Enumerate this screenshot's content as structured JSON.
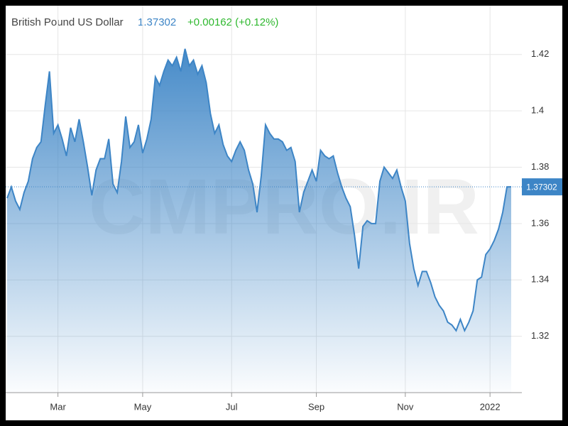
{
  "chart_data": {
    "type": "area",
    "title": "British Pound US Dollar",
    "price": "1.37302",
    "change": "+0.00162 (+0.12%)",
    "watermark": "CMPRO.IR",
    "color": "#3d85c6",
    "categories": [
      null,
      null,
      null,
      null,
      null,
      null,
      null,
      null,
      null,
      null,
      null,
      null,
      "Mar",
      null,
      null,
      null,
      null,
      null,
      null,
      null,
      null,
      null,
      null,
      null,
      null,
      null,
      null,
      null,
      null,
      null,
      null,
      null,
      "May",
      null,
      null,
      null,
      null,
      null,
      null,
      null,
      null,
      null,
      null,
      null,
      null,
      null,
      null,
      null,
      null,
      null,
      null,
      null,
      null,
      "Jul",
      null,
      null,
      null,
      null,
      null,
      null,
      null,
      null,
      null,
      null,
      null,
      null,
      null,
      null,
      null,
      null,
      null,
      null,
      null,
      "Sep",
      null,
      null,
      null,
      null,
      null,
      null,
      null,
      null,
      null,
      null,
      null,
      null,
      null,
      null,
      null,
      null,
      null,
      null,
      null,
      null,
      "Nov",
      null,
      null,
      null,
      null,
      null,
      null,
      null,
      null,
      null,
      null,
      null,
      null,
      null,
      null,
      null,
      null,
      null,
      null,
      null,
      "2022",
      null,
      null,
      null,
      null,
      null
    ],
    "values": [
      1.369,
      1.373,
      1.368,
      1.365,
      1.371,
      1.375,
      1.383,
      1.387,
      1.389,
      1.402,
      1.414,
      1.392,
      1.395,
      1.39,
      1.384,
      1.394,
      1.389,
      1.397,
      1.389,
      1.38,
      1.37,
      1.379,
      1.383,
      1.383,
      1.39,
      1.374,
      1.371,
      1.382,
      1.398,
      1.387,
      1.389,
      1.395,
      1.385,
      1.39,
      1.397,
      1.412,
      1.409,
      1.414,
      1.418,
      1.416,
      1.419,
      1.414,
      1.422,
      1.416,
      1.418,
      1.413,
      1.416,
      1.41,
      1.399,
      1.392,
      1.395,
      1.388,
      1.384,
      1.382,
      1.386,
      1.389,
      1.386,
      1.379,
      1.374,
      1.364,
      1.377,
      1.395,
      1.392,
      1.39,
      1.39,
      1.389,
      1.386,
      1.387,
      1.382,
      1.364,
      1.371,
      1.375,
      1.379,
      1.375,
      1.386,
      1.384,
      1.383,
      1.384,
      1.378,
      1.373,
      1.369,
      1.366,
      1.356,
      1.344,
      1.359,
      1.361,
      1.36,
      1.36,
      1.375,
      1.38,
      1.378,
      1.376,
      1.379,
      1.373,
      1.368,
      1.353,
      1.344,
      1.338,
      1.343,
      1.343,
      1.339,
      1.334,
      1.331,
      1.329,
      1.325,
      1.324,
      1.322,
      1.326,
      1.322,
      1.325,
      1.329,
      1.34,
      1.341,
      1.349,
      1.351,
      1.354,
      1.358,
      1.364,
      1.373,
      1.37302
    ],
    "ylim": [
      1.3,
      1.43
    ],
    "yticks": [
      1.32,
      1.34,
      1.36,
      1.38,
      1.4,
      1.42
    ],
    "grid": true
  }
}
